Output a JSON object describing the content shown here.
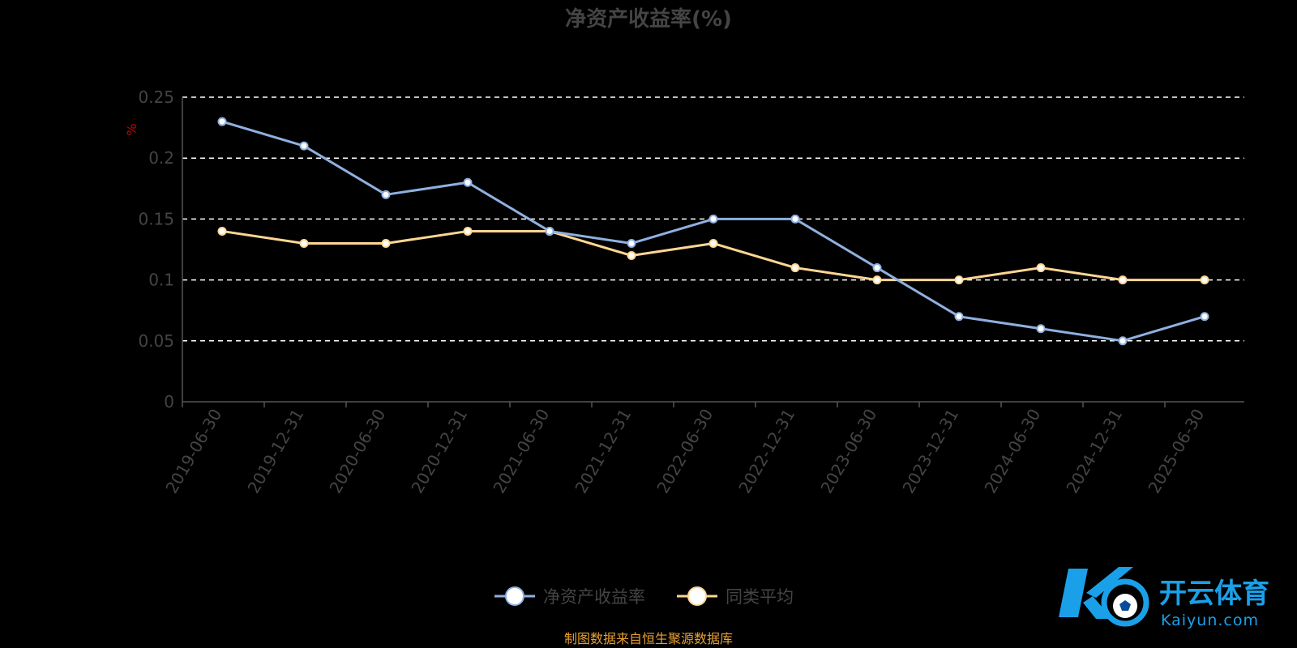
{
  "colors": {
    "background": "#000000",
    "title": "#444444",
    "axis": "#555555",
    "tick_label": "#444444",
    "grid": "#ffffff",
    "unit": "#cc0000",
    "series_1": "#8fb0e0",
    "series_2": "#ffd694",
    "point_fill_1": "#ffffff",
    "point_fill_2": "#ffffff",
    "legend_text": "#444444",
    "source": "#e8a030",
    "logo_blue": "#1aa0e8",
    "logo_dark": "#0a4a9a"
  },
  "chart_data": {
    "type": "line",
    "title": "净资产收益率(%)",
    "ylabel": "%",
    "xlabel": "",
    "ylim": [
      0,
      0.25
    ],
    "yticks": [
      "0",
      "0.05",
      "0.1",
      "0.15",
      "0.2",
      "0.25"
    ],
    "ytick_values": [
      0,
      0.05,
      0.1,
      0.15,
      0.2,
      0.25
    ],
    "grid": true,
    "legend_position": "bottom-center",
    "categories": [
      "2019-06-30",
      "2019-12-31",
      "2020-06-30",
      "2020-12-31",
      "2021-06-30",
      "2021-12-31",
      "2022-06-30",
      "2022-12-31",
      "2023-06-30",
      "2023-12-31",
      "2024-06-30",
      "2024-12-31",
      "2025-06-30"
    ],
    "series": [
      {
        "name": "净资产收益率",
        "values": [
          0.23,
          0.21,
          0.17,
          0.18,
          0.14,
          0.13,
          0.15,
          0.15,
          0.11,
          0.07,
          0.06,
          0.05,
          0.07
        ]
      },
      {
        "name": "同类平均",
        "values": [
          0.14,
          0.13,
          0.13,
          0.14,
          0.14,
          0.12,
          0.13,
          0.11,
          0.1,
          0.1,
          0.11,
          0.1,
          0.1
        ]
      }
    ]
  },
  "footer": {
    "source": "制图数据来自恒生聚源数据库"
  },
  "watermark": {
    "logo_icon": "kaiyun-soccer-logo-icon",
    "brand_name": "开云体育",
    "brand_url": "Kaiyun.com"
  }
}
